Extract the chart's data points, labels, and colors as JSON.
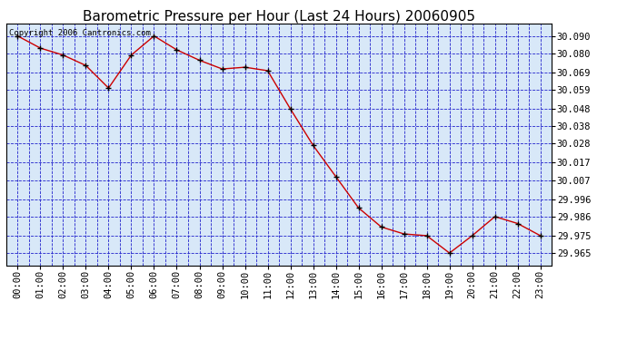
{
  "title": "Barometric Pressure per Hour (Last 24 Hours) 20060905",
  "copyright": "Copyright 2006 Cantronics.com",
  "x_labels": [
    "00:00",
    "01:00",
    "02:00",
    "03:00",
    "04:00",
    "05:00",
    "06:00",
    "07:00",
    "08:00",
    "09:00",
    "10:00",
    "11:00",
    "12:00",
    "13:00",
    "14:00",
    "15:00",
    "16:00",
    "17:00",
    "18:00",
    "19:00",
    "20:00",
    "21:00",
    "22:00",
    "23:00"
  ],
  "y_values": [
    30.09,
    30.083,
    30.079,
    30.073,
    30.06,
    30.079,
    30.09,
    30.082,
    30.076,
    30.071,
    30.072,
    30.07,
    30.048,
    30.027,
    30.009,
    29.991,
    29.98,
    29.976,
    29.975,
    29.965,
    29.975,
    29.986,
    29.982,
    29.975
  ],
  "y_ticks": [
    30.09,
    30.08,
    30.069,
    30.059,
    30.048,
    30.038,
    30.028,
    30.017,
    30.007,
    29.996,
    29.986,
    29.975,
    29.965
  ],
  "ylim_min": 29.958,
  "ylim_max": 30.097,
  "line_color": "#cc0000",
  "marker_color": "#000000",
  "bg_color": "#d8e8f8",
  "grid_color": "#2222cc",
  "title_fontsize": 11,
  "copyright_fontsize": 6.5,
  "tick_fontsize": 7.5,
  "title_color": "#000000",
  "outer_bg": "#ffffff"
}
